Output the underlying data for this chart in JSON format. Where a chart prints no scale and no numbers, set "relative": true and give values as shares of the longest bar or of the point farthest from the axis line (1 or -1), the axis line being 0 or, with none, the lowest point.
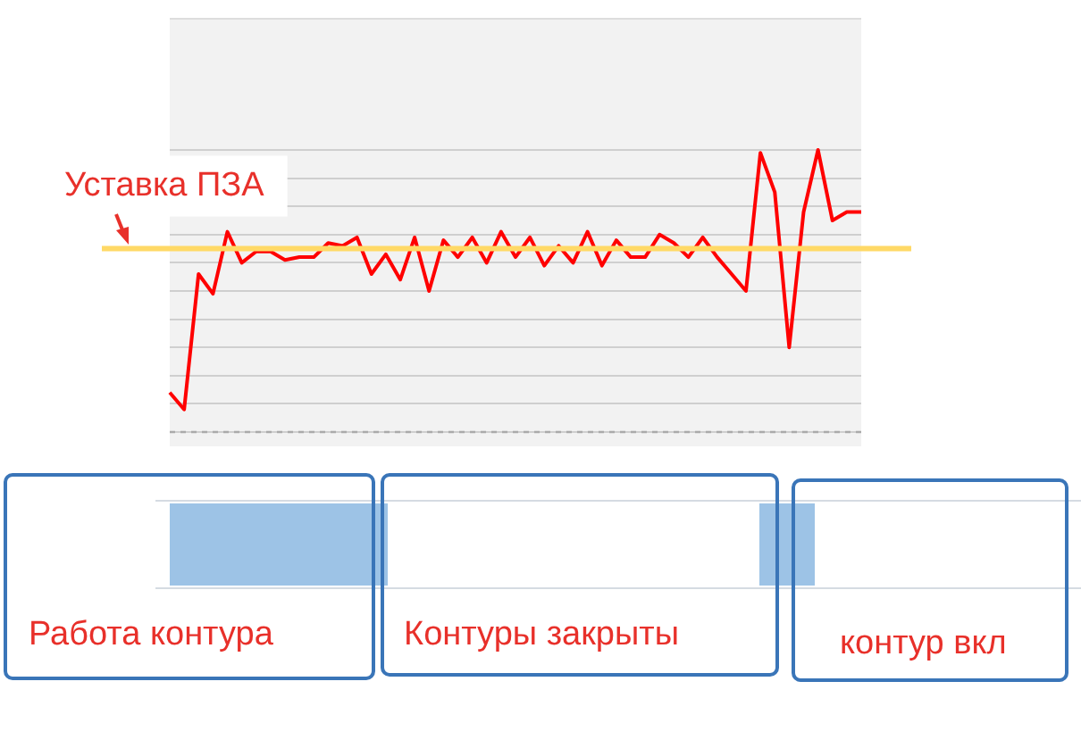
{
  "chart_data": {
    "type": "line",
    "relative": true,
    "categories": [
      null,
      null,
      null,
      null,
      null,
      null,
      null,
      null,
      null,
      null,
      null,
      null,
      null,
      null,
      null,
      null,
      null,
      null,
      null,
      null,
      null,
      null,
      null,
      null,
      null,
      null,
      null,
      null,
      null,
      null,
      null,
      null,
      null,
      null,
      null,
      null,
      null,
      null,
      null,
      null,
      null,
      null,
      null,
      null,
      null,
      null,
      null,
      null,
      null
    ],
    "series": [
      {
        "color": "#ff0000",
        "values": [
          0.14,
          0.08,
          0.56,
          0.49,
          0.71,
          0.6,
          0.64,
          0.64,
          0.61,
          0.62,
          0.62,
          0.67,
          0.66,
          0.69,
          0.56,
          0.63,
          0.54,
          0.69,
          0.5,
          0.68,
          0.62,
          0.69,
          0.6,
          0.71,
          0.62,
          0.69,
          0.59,
          0.66,
          0.6,
          0.71,
          0.59,
          0.68,
          0.62,
          0.62,
          0.7,
          0.67,
          0.62,
          0.69,
          0.62,
          0.56,
          0.5,
          0.99,
          0.85,
          0.3,
          0.78,
          1,
          0.75,
          0.78,
          0.78
        ]
      }
    ],
    "ref_lines": [
      {
        "axis": "y",
        "value": 0.65,
        "label": "Уставка ПЗА",
        "color": "#ffd966"
      },
      {
        "axis": "y",
        "value": 0,
        "color": "#aaaaaa",
        "line_style": "dashed"
      }
    ],
    "annotations": [
      "Работа контура",
      "Контуры закрыты",
      "контур вкл"
    ],
    "grid": "y",
    "legend": false,
    "marker": "none"
  }
}
